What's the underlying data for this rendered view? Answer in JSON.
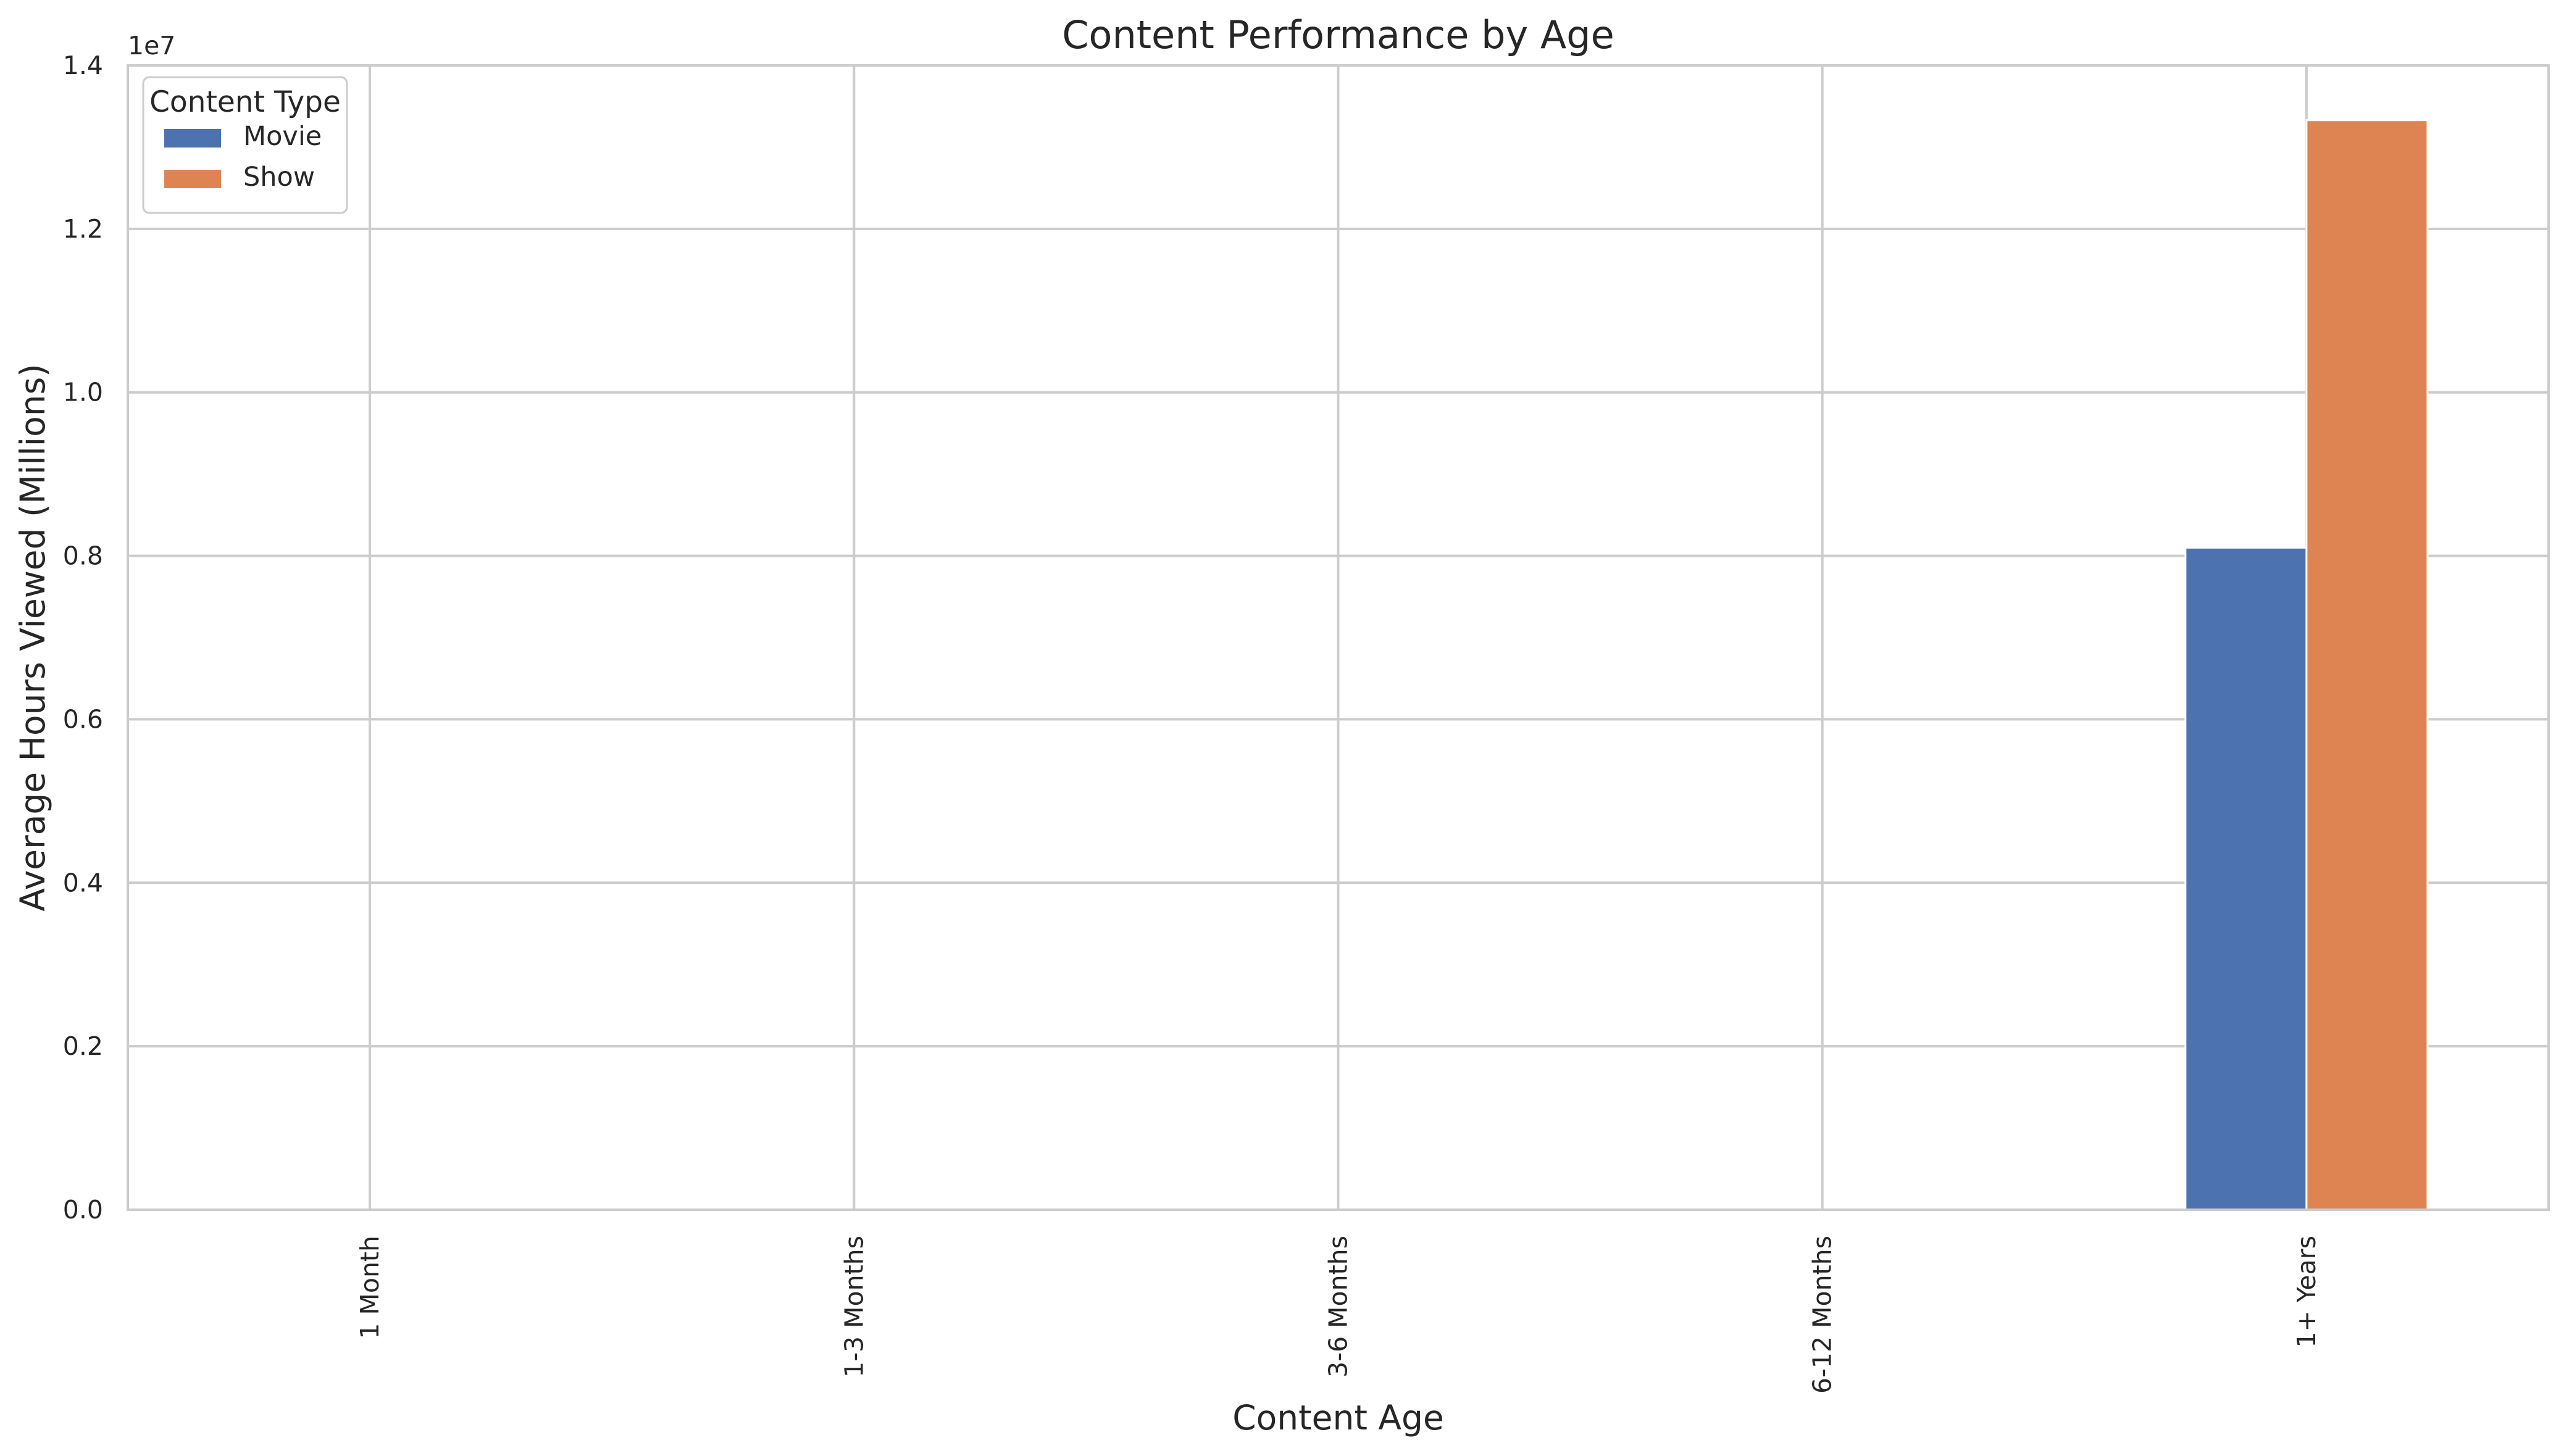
{
  "chart_data": {
    "type": "bar",
    "title": "Content Performance by Age",
    "xlabel": "Content Age",
    "ylabel": "Average Hours Viewed (Millions)",
    "categories": [
      "1 Month",
      "1-3 Months",
      "3-6 Months",
      "6-12 Months",
      "1+ Years"
    ],
    "series": [
      {
        "name": "Movie",
        "color": "#4c72b0",
        "values": [
          0,
          0,
          0,
          0,
          8100000
        ]
      },
      {
        "name": "Show",
        "color": "#dd8452",
        "values": [
          0,
          0,
          0,
          0,
          13330000
        ]
      }
    ],
    "ylim": [
      0,
      14000000
    ],
    "yticks": [
      {
        "value": 0,
        "label": "0.0"
      },
      {
        "value": 2000000,
        "label": "0.2"
      },
      {
        "value": 4000000,
        "label": "0.4"
      },
      {
        "value": 6000000,
        "label": "0.6"
      },
      {
        "value": 8000000,
        "label": "0.8"
      },
      {
        "value": 10000000,
        "label": "1.0"
      },
      {
        "value": 12000000,
        "label": "1.2"
      },
      {
        "value": 14000000,
        "label": "1.4"
      }
    ],
    "y_offset_label": "1e7",
    "grid": true,
    "legend": {
      "title": "Content Type",
      "position": "top-left"
    },
    "xtick_rotation": 90
  }
}
